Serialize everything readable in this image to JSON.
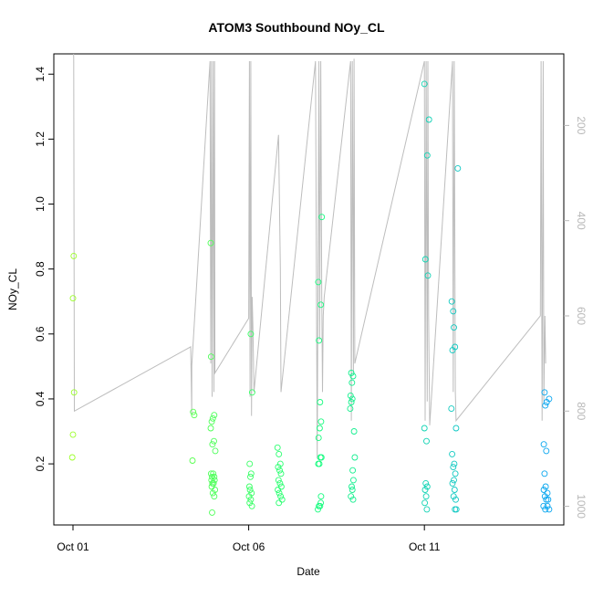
{
  "chart_data": {
    "type": "scatter",
    "title": "ATOM3 Southbound NOy_CL",
    "xlabel": "Date",
    "ylabel": "NOy_CL",
    "x_ticks": [
      {
        "label": "Oct 01",
        "value": 1.0
      },
      {
        "label": "Oct 06",
        "value": 6.0
      },
      {
        "label": "Oct 11",
        "value": 11.0
      }
    ],
    "xlim": [
      1.0,
      14.5
    ],
    "ylim": [
      0.04,
      1.44
    ],
    "y_ticks": [
      0.2,
      0.4,
      0.6,
      0.8,
      1.0,
      1.2,
      1.4
    ],
    "y2_label": "",
    "y2_ticks": [
      200,
      400,
      600,
      800,
      1000
    ],
    "y2lim": [
      1020,
      65
    ],
    "grid": false,
    "colors": {
      "points_start": "#9cff2a",
      "points_mid": "#18ff7a",
      "points_end": "#0aa6f0",
      "altitude_line": "#bdbdbd",
      "axis": "#000000",
      "right_axis": "#b8b8b8"
    },
    "series": [
      {
        "kind": "points",
        "points": [
          [
            1.02,
            0.84
          ],
          [
            1.0,
            0.71
          ],
          [
            1.03,
            0.42
          ],
          [
            1.0,
            0.29
          ],
          [
            0.98,
            0.22
          ],
          [
            4.42,
            0.36
          ],
          [
            4.45,
            0.35
          ],
          [
            4.4,
            0.21
          ],
          [
            4.92,
            0.88
          ],
          [
            4.93,
            0.53
          ],
          [
            4.92,
            0.31
          ],
          [
            5.02,
            0.35
          ],
          [
            4.98,
            0.34
          ],
          [
            4.95,
            0.33
          ],
          [
            5.01,
            0.27
          ],
          [
            4.97,
            0.26
          ],
          [
            5.05,
            0.24
          ],
          [
            4.93,
            0.17
          ],
          [
            4.96,
            0.16
          ],
          [
            4.99,
            0.17
          ],
          [
            5.02,
            0.16
          ],
          [
            4.94,
            0.15
          ],
          [
            4.97,
            0.14
          ],
          [
            5.0,
            0.14
          ],
          [
            5.03,
            0.15
          ],
          [
            4.95,
            0.13
          ],
          [
            5.04,
            0.12
          ],
          [
            4.98,
            0.11
          ],
          [
            5.02,
            0.1
          ],
          [
            4.96,
            0.05
          ],
          [
            6.06,
            0.6
          ],
          [
            6.1,
            0.42
          ],
          [
            6.03,
            0.2
          ],
          [
            6.07,
            0.17
          ],
          [
            6.05,
            0.16
          ],
          [
            6.02,
            0.13
          ],
          [
            6.04,
            0.12
          ],
          [
            6.08,
            0.11
          ],
          [
            6.01,
            0.1
          ],
          [
            6.06,
            0.09
          ],
          [
            6.03,
            0.08
          ],
          [
            6.09,
            0.07
          ],
          [
            6.82,
            0.25
          ],
          [
            6.86,
            0.23
          ],
          [
            6.9,
            0.2
          ],
          [
            6.84,
            0.19
          ],
          [
            6.88,
            0.18
          ],
          [
            6.92,
            0.17
          ],
          [
            6.85,
            0.15
          ],
          [
            6.89,
            0.14
          ],
          [
            6.93,
            0.13
          ],
          [
            6.83,
            0.12
          ],
          [
            6.87,
            0.11
          ],
          [
            6.91,
            0.1
          ],
          [
            6.95,
            0.09
          ],
          [
            6.86,
            0.08
          ],
          [
            7.98,
            0.76
          ],
          [
            8.08,
            0.96
          ],
          [
            8.05,
            0.69
          ],
          [
            8.0,
            0.58
          ],
          [
            8.03,
            0.39
          ],
          [
            8.06,
            0.33
          ],
          [
            8.02,
            0.31
          ],
          [
            7.99,
            0.28
          ],
          [
            8.07,
            0.22
          ],
          [
            8.04,
            0.22
          ],
          [
            7.98,
            0.2
          ],
          [
            8.01,
            0.2
          ],
          [
            8.05,
            0.08
          ],
          [
            8.0,
            0.07
          ],
          [
            8.03,
            0.07
          ],
          [
            7.97,
            0.06
          ],
          [
            8.06,
            0.1
          ],
          [
            8.92,
            0.48
          ],
          [
            8.97,
            0.47
          ],
          [
            8.94,
            0.45
          ],
          [
            8.9,
            0.41
          ],
          [
            8.95,
            0.4
          ],
          [
            8.92,
            0.39
          ],
          [
            8.89,
            0.37
          ],
          [
            9.0,
            0.3
          ],
          [
            9.02,
            0.22
          ],
          [
            8.96,
            0.18
          ],
          [
            8.98,
            0.15
          ],
          [
            8.93,
            0.13
          ],
          [
            8.95,
            0.12
          ],
          [
            8.91,
            0.1
          ],
          [
            8.97,
            0.09
          ],
          [
            11.0,
            1.37
          ],
          [
            11.13,
            1.26
          ],
          [
            11.08,
            1.15
          ],
          [
            11.03,
            0.83
          ],
          [
            11.1,
            0.78
          ],
          [
            11.0,
            0.31
          ],
          [
            11.06,
            0.27
          ],
          [
            11.04,
            0.14
          ],
          [
            11.08,
            0.13
          ],
          [
            11.02,
            0.12
          ],
          [
            11.05,
            0.1
          ],
          [
            11.01,
            0.08
          ],
          [
            11.07,
            0.06
          ],
          [
            11.78,
            0.7
          ],
          [
            11.82,
            0.67
          ],
          [
            11.84,
            0.62
          ],
          [
            11.87,
            0.56
          ],
          [
            11.8,
            0.55
          ],
          [
            11.95,
            1.11
          ],
          [
            11.77,
            0.37
          ],
          [
            11.9,
            0.31
          ],
          [
            11.79,
            0.23
          ],
          [
            11.85,
            0.2
          ],
          [
            11.82,
            0.19
          ],
          [
            11.88,
            0.17
          ],
          [
            11.84,
            0.15
          ],
          [
            11.8,
            0.14
          ],
          [
            11.86,
            0.12
          ],
          [
            11.83,
            0.1
          ],
          [
            11.89,
            0.09
          ],
          [
            11.87,
            0.06
          ],
          [
            11.91,
            0.06
          ],
          [
            14.42,
            0.42
          ],
          [
            14.48,
            0.39
          ],
          [
            14.55,
            0.4
          ],
          [
            14.44,
            0.38
          ],
          [
            14.4,
            0.26
          ],
          [
            14.47,
            0.24
          ],
          [
            14.42,
            0.17
          ],
          [
            14.45,
            0.13
          ],
          [
            14.4,
            0.12
          ],
          [
            14.5,
            0.11
          ],
          [
            14.43,
            0.1
          ],
          [
            14.47,
            0.09
          ],
          [
            14.52,
            0.09
          ],
          [
            14.39,
            0.07
          ],
          [
            14.44,
            0.06
          ],
          [
            14.5,
            0.07
          ],
          [
            14.55,
            0.06
          ]
        ]
      },
      {
        "kind": "altitude_line",
        "points": [
          [
            1.0,
            0
          ],
          [
            1.02,
            60
          ],
          [
            1.04,
            800
          ],
          [
            4.35,
            665
          ],
          [
            4.38,
            805
          ],
          [
            4.38,
            705
          ],
          [
            4.9,
            65
          ],
          [
            4.92,
            700
          ],
          [
            4.94,
            65
          ],
          [
            4.96,
            770
          ],
          [
            4.99,
            65
          ],
          [
            5.01,
            760
          ],
          [
            5.03,
            65
          ],
          [
            5.04,
            720
          ],
          [
            6.0,
            605
          ],
          [
            6.02,
            65
          ],
          [
            6.04,
            770
          ],
          [
            6.06,
            65
          ],
          [
            6.08,
            810
          ],
          [
            6.1,
            560
          ],
          [
            6.12,
            620
          ],
          [
            6.15,
            760
          ],
          [
            6.85,
            220
          ],
          [
            6.9,
            500
          ],
          [
            6.92,
            760
          ],
          [
            7.9,
            65
          ],
          [
            7.95,
            900
          ],
          [
            8.0,
            65
          ],
          [
            8.02,
            650
          ],
          [
            8.05,
            65
          ],
          [
            8.08,
            560
          ],
          [
            8.1,
            760
          ],
          [
            8.12,
            600
          ],
          [
            8.15,
            560
          ],
          [
            8.9,
            65
          ],
          [
            8.92,
            820
          ],
          [
            8.95,
            65
          ],
          [
            8.98,
            720
          ],
          [
            9.0,
            60
          ],
          [
            9.02,
            700
          ],
          [
            11.0,
            65
          ],
          [
            11.02,
            820
          ],
          [
            11.05,
            65
          ],
          [
            11.08,
            780
          ],
          [
            11.1,
            65
          ],
          [
            11.12,
            600
          ],
          [
            11.15,
            830
          ],
          [
            11.8,
            65
          ],
          [
            11.82,
            760
          ],
          [
            11.85,
            65
          ],
          [
            11.88,
            760
          ],
          [
            11.9,
            820
          ],
          [
            14.3,
            600
          ],
          [
            14.32,
            65
          ],
          [
            14.35,
            820
          ],
          [
            14.38,
            65
          ],
          [
            14.4,
            780
          ],
          [
            14.43,
            600
          ],
          [
            14.45,
            700
          ]
        ]
      }
    ]
  }
}
